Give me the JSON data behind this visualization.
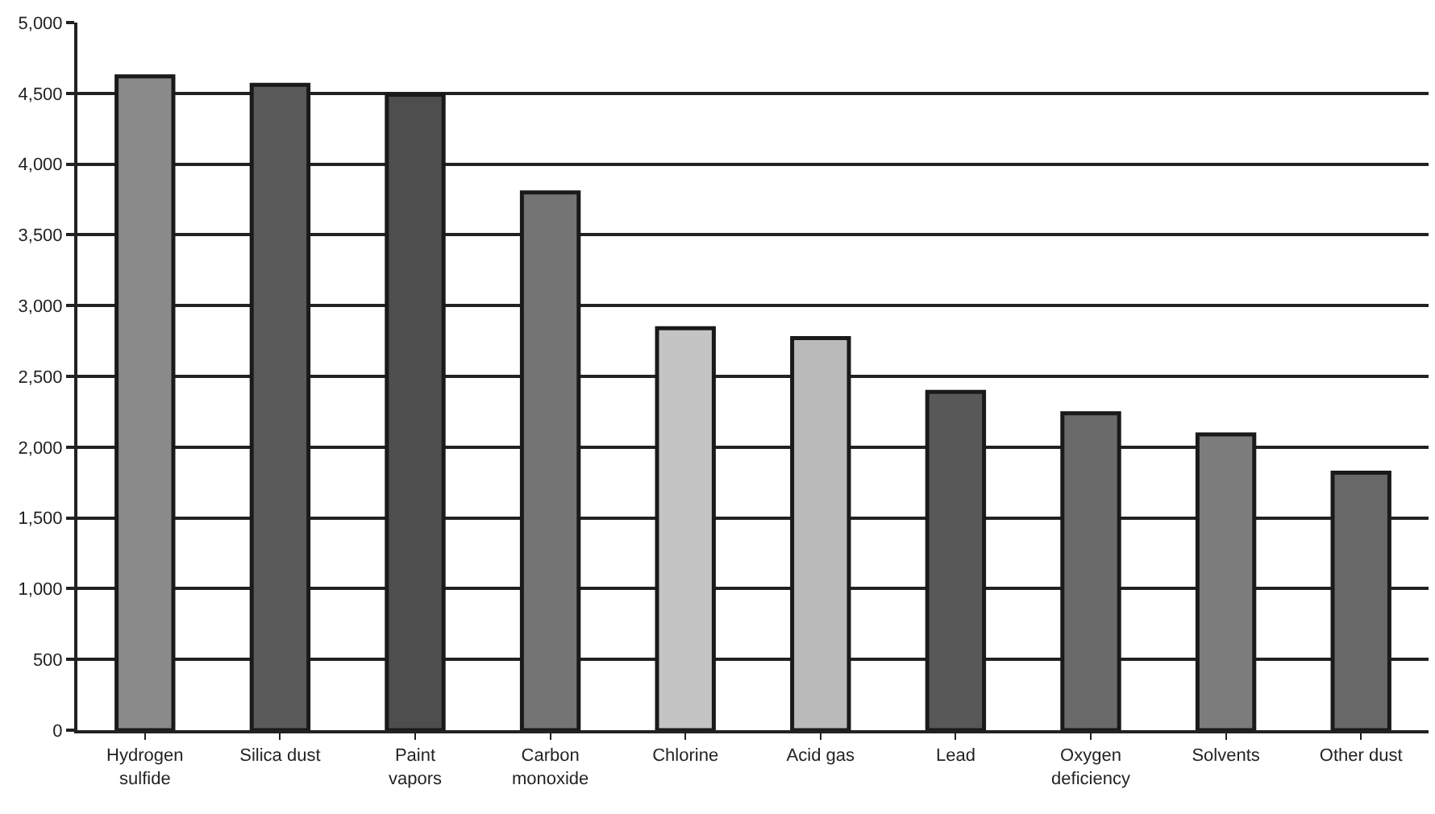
{
  "chart_data": {
    "type": "bar",
    "categories": [
      "Hydrogen sulfide",
      "Silica dust",
      "Paint vapors",
      "Carbon monoxide",
      "Chlorine",
      "Acid gas",
      "Lead",
      "Oxygen deficiency",
      "Solvents",
      "Other dust"
    ],
    "values": [
      4620,
      4560,
      4490,
      3800,
      2840,
      2770,
      2390,
      2240,
      2090,
      1820
    ],
    "colors": [
      "#8a8a8a",
      "#5a5a5a",
      "#4e4e4e",
      "#747474",
      "#c4c4c4",
      "#bababa",
      "#585858",
      "#6a6a6a",
      "#7c7c7c",
      "#686868"
    ],
    "ylim": [
      0,
      5000
    ],
    "yticks": [
      {
        "value": 0,
        "label": "0"
      },
      {
        "value": 500,
        "label": "500"
      },
      {
        "value": 1000,
        "label": "1,000"
      },
      {
        "value": 1500,
        "label": "1,500"
      },
      {
        "value": 2000,
        "label": "2,000"
      },
      {
        "value": 2500,
        "label": "2,500"
      },
      {
        "value": 3000,
        "label": "3,000"
      },
      {
        "value": 3500,
        "label": "3,500"
      },
      {
        "value": 4000,
        "label": "4,000"
      },
      {
        "value": 4500,
        "label": "4,500"
      },
      {
        "value": 5000,
        "label": "5,000"
      }
    ],
    "grid": "y",
    "legend": false
  }
}
